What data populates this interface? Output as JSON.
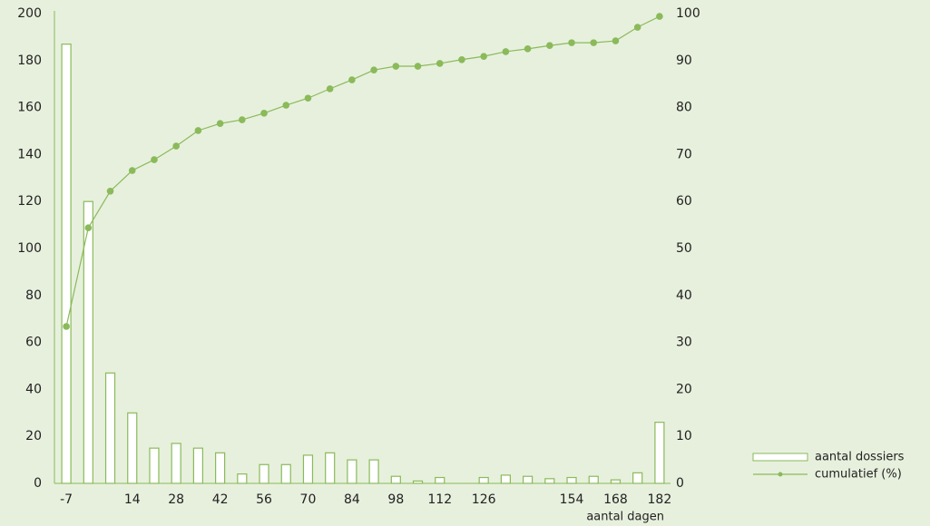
{
  "chart_data": {
    "type": "bar_line",
    "x_label": "aantal dagen",
    "categories": [
      "-7",
      null,
      null,
      "14",
      null,
      "28",
      null,
      "42",
      null,
      "56",
      null,
      "70",
      null,
      "84",
      null,
      "98",
      null,
      "112",
      null,
      "126",
      null,
      null,
      null,
      "154",
      null,
      "168",
      null,
      "182"
    ],
    "series": [
      {
        "name": "aantal dossiers",
        "type": "bar",
        "color": "#8aba5a",
        "axis": "y",
        "values": [
          187,
          120,
          47,
          30,
          15,
          17,
          15,
          13,
          4,
          8,
          8,
          12,
          13,
          10,
          10,
          3,
          1,
          2.5,
          0,
          2.5,
          3.5,
          3,
          2,
          2.5,
          3,
          1.5,
          4.5,
          26
        ]
      },
      {
        "name": "cumulatief (%)",
        "type": "line",
        "color": "#8aba5a",
        "axis": "y2",
        "values": [
          33.4,
          54.4,
          62.2,
          66.6,
          68.9,
          71.8,
          75.1,
          76.6,
          77.4,
          78.8,
          80.5,
          82,
          84,
          85.9,
          88,
          88.8,
          88.8,
          89.4,
          90.2,
          90.9,
          91.9,
          92.5,
          93.2,
          93.8,
          93.8,
          94.2,
          97.1,
          99.4
        ]
      }
    ],
    "ylim": [
      0,
      200
    ],
    "yticks": [
      0,
      20,
      40,
      60,
      80,
      100,
      120,
      140,
      160,
      180,
      200
    ],
    "y2lim": [
      0,
      100
    ],
    "y2ticks": [
      0,
      10,
      20,
      30,
      40,
      50,
      60,
      70,
      80,
      90,
      100
    ],
    "legend": "bottom-right"
  }
}
